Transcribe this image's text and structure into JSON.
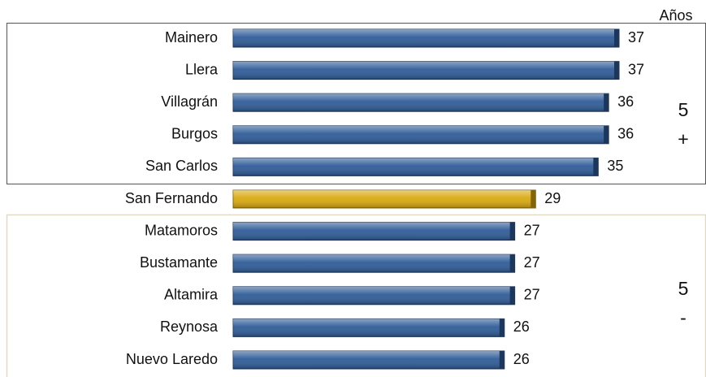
{
  "chart_data": {
    "type": "bar",
    "orientation": "horizontal",
    "unit_label": "Años",
    "categories": [
      "Mainero",
      "Llera",
      "Villagrán",
      "Burgos",
      "San Carlos",
      "San Fernando",
      "Matamoros",
      "Bustamante",
      "Altamira",
      "Reynosa",
      "Nuevo Laredo"
    ],
    "values": [
      37,
      37,
      36,
      36,
      35,
      29,
      27,
      27,
      27,
      26,
      26
    ],
    "colors": [
      "#2f5c98",
      "#2f5c98",
      "#2f5c98",
      "#2f5c98",
      "#2f5c98",
      "#d9a90f",
      "#2f5c98",
      "#2f5c98",
      "#2f5c98",
      "#2f5c98",
      "#2f5c98"
    ],
    "annotations": [
      {
        "text": "5",
        "group": "top"
      },
      {
        "text": "+",
        "group": "top"
      },
      {
        "text": "5",
        "group": "bottom"
      },
      {
        "text": "-",
        "group": "bottom"
      }
    ]
  }
}
